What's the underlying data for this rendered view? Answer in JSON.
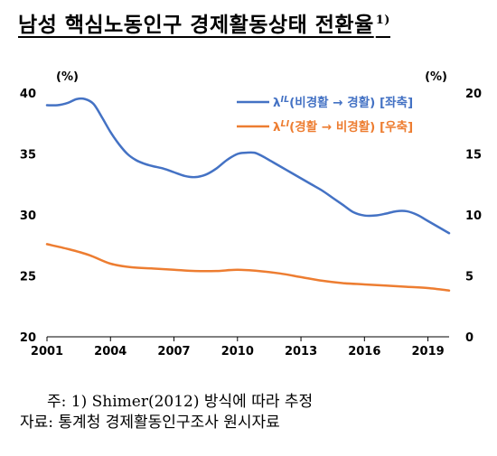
{
  "title": {
    "text": "남성 핵심노동인구 경제활동상태 전환율",
    "footnote_mark": "1)"
  },
  "notes": [
    "주: 1) Shimer(2012) 방식에 따라 추정",
    "자료: 통계청 경제활동인구조사 원시자료"
  ],
  "chart_data": {
    "type": "line",
    "x_ticks": [
      "2001",
      "2004",
      "2007",
      "2010",
      "2013",
      "2016",
      "2019"
    ],
    "xlim": [
      2001,
      2020
    ],
    "left_axis": {
      "unit": "(%)",
      "ylim": [
        20,
        40
      ],
      "ticks": [
        "20",
        "25",
        "30",
        "35",
        "40"
      ]
    },
    "right_axis": {
      "unit": "(%)",
      "ylim": [
        0,
        20
      ],
      "ticks": [
        "0",
        "5",
        "10",
        "15",
        "20"
      ]
    },
    "legend_position": "top-right",
    "series": [
      {
        "name": "λ",
        "superscript": "IL",
        "label_rest": "(비경활 → 경활) [좌축]",
        "axis": "left",
        "color": "#4472C4",
        "points": [
          [
            2001.0,
            39.0
          ],
          [
            2001.5,
            39.0
          ],
          [
            2002.0,
            39.2
          ],
          [
            2002.4,
            39.5
          ],
          [
            2002.8,
            39.5
          ],
          [
            2003.2,
            39.1
          ],
          [
            2003.6,
            38.0
          ],
          [
            2004.0,
            36.8
          ],
          [
            2004.4,
            35.8
          ],
          [
            2004.8,
            35.0
          ],
          [
            2005.2,
            34.5
          ],
          [
            2005.6,
            34.2
          ],
          [
            2006.0,
            34.0
          ],
          [
            2006.5,
            33.8
          ],
          [
            2007.0,
            33.5
          ],
          [
            2007.5,
            33.2
          ],
          [
            2008.0,
            33.1
          ],
          [
            2008.5,
            33.3
          ],
          [
            2009.0,
            33.8
          ],
          [
            2009.5,
            34.5
          ],
          [
            2010.0,
            35.0
          ],
          [
            2010.4,
            35.1
          ],
          [
            2010.8,
            35.1
          ],
          [
            2011.2,
            34.8
          ],
          [
            2011.6,
            34.4
          ],
          [
            2012.0,
            34.0
          ],
          [
            2012.5,
            33.5
          ],
          [
            2013.0,
            33.0
          ],
          [
            2013.5,
            32.5
          ],
          [
            2014.0,
            32.0
          ],
          [
            2014.5,
            31.4
          ],
          [
            2015.0,
            30.8
          ],
          [
            2015.5,
            30.2
          ],
          [
            2016.0,
            29.95
          ],
          [
            2016.5,
            29.95
          ],
          [
            2017.0,
            30.1
          ],
          [
            2017.5,
            30.3
          ],
          [
            2018.0,
            30.3
          ],
          [
            2018.5,
            30.0
          ],
          [
            2019.0,
            29.5
          ],
          [
            2019.5,
            29.0
          ],
          [
            2020.0,
            28.5
          ]
        ]
      },
      {
        "name": "λ",
        "superscript": "LI",
        "label_rest": "(경활 → 비경활) [우축]",
        "axis": "right",
        "color": "#ED7D31",
        "points": [
          [
            2001.0,
            7.6
          ],
          [
            2002.0,
            7.2
          ],
          [
            2003.0,
            6.7
          ],
          [
            2004.0,
            6.0
          ],
          [
            2005.0,
            5.7
          ],
          [
            2006.0,
            5.6
          ],
          [
            2007.0,
            5.5
          ],
          [
            2008.0,
            5.4
          ],
          [
            2009.0,
            5.4
          ],
          [
            2010.0,
            5.5
          ],
          [
            2011.0,
            5.4
          ],
          [
            2012.0,
            5.2
          ],
          [
            2013.0,
            4.9
          ],
          [
            2014.0,
            4.6
          ],
          [
            2015.0,
            4.4
          ],
          [
            2016.0,
            4.3
          ],
          [
            2017.0,
            4.2
          ],
          [
            2018.0,
            4.1
          ],
          [
            2019.0,
            4.0
          ],
          [
            2020.0,
            3.8
          ]
        ]
      }
    ]
  }
}
